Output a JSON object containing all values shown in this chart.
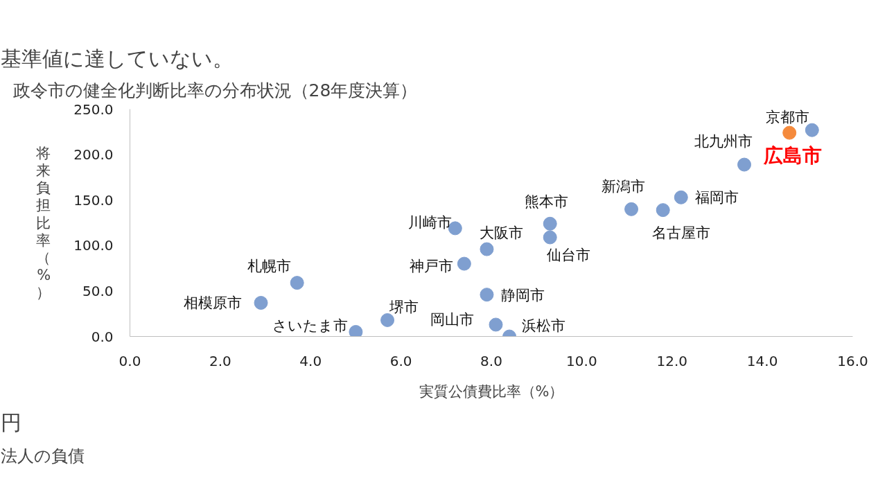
{
  "chart_data": {
    "type": "scatter",
    "title": "政令市の健全化判断比率の分布状況（28年度決算）",
    "xlabel": "実質公債費比率（%）",
    "ylabel": "将来負担比率（%）",
    "xlim": [
      0,
      16
    ],
    "ylim": [
      0,
      250
    ],
    "xticks": [
      {
        "value": 0,
        "label": "0.0"
      },
      {
        "value": 2,
        "label": "2.0"
      },
      {
        "value": 4,
        "label": "4.0"
      },
      {
        "value": 6,
        "label": "6.0"
      },
      {
        "value": 8,
        "label": "8.0"
      },
      {
        "value": 10,
        "label": "10.0"
      },
      {
        "value": 12,
        "label": "12.0"
      },
      {
        "value": 14,
        "label": "14.0"
      },
      {
        "value": 16,
        "label": "16.0"
      }
    ],
    "yticks": [
      {
        "value": 0,
        "label": "0.0"
      },
      {
        "value": 50,
        "label": "50.0"
      },
      {
        "value": 100,
        "label": "100.0"
      },
      {
        "value": 150,
        "label": "150.0"
      },
      {
        "value": 200,
        "label": "200.0"
      },
      {
        "value": 250,
        "label": "250.0"
      }
    ],
    "marker": "circle",
    "series": [
      {
        "color": "#7f9fd0",
        "x": [
          15.1,
          13.6,
          12.2,
          11.1,
          11.8,
          9.3,
          9.3,
          7.2,
          7.9,
          7.4,
          3.7,
          2.9,
          7.9,
          5.7,
          8.1,
          5.0,
          8.4
        ],
        "values": [
          227,
          189,
          153,
          140,
          139,
          124,
          109,
          119,
          96,
          80,
          59,
          37,
          46,
          18,
          13,
          5,
          0
        ]
      },
      {
        "name": "広島市",
        "color": "#f58a3c",
        "x": [
          14.6
        ],
        "values": [
          224
        ]
      }
    ],
    "annotations": [
      {
        "text": "京都市",
        "x": 15.1,
        "y": 227
      },
      {
        "text": "北九州市",
        "x": 13.6,
        "y": 189
      },
      {
        "text": "福岡市",
        "x": 12.2,
        "y": 153
      },
      {
        "text": "新潟市",
        "x": 11.1,
        "y": 140
      },
      {
        "text": "名古屋市",
        "x": 11.8,
        "y": 139
      },
      {
        "text": "熊本市",
        "x": 9.3,
        "y": 124
      },
      {
        "text": "仙台市",
        "x": 9.3,
        "y": 109
      },
      {
        "text": "川崎市",
        "x": 7.2,
        "y": 119
      },
      {
        "text": "大阪市",
        "x": 7.9,
        "y": 96
      },
      {
        "text": "神戸市",
        "x": 7.4,
        "y": 80
      },
      {
        "text": "札幌市",
        "x": 3.7,
        "y": 59
      },
      {
        "text": "相模原市",
        "x": 2.9,
        "y": 37
      },
      {
        "text": "静岡市",
        "x": 7.9,
        "y": 46
      },
      {
        "text": "堺市",
        "x": 5.7,
        "y": 18
      },
      {
        "text": "岡山市",
        "x": 8.1,
        "y": 13
      },
      {
        "text": "さいたま市",
        "x": 5.0,
        "y": 5
      },
      {
        "text": "浜松市",
        "x": 8.4,
        "y": 0
      },
      "基準値に達していない。",
      "円",
      "法人の負債"
    ]
  }
}
